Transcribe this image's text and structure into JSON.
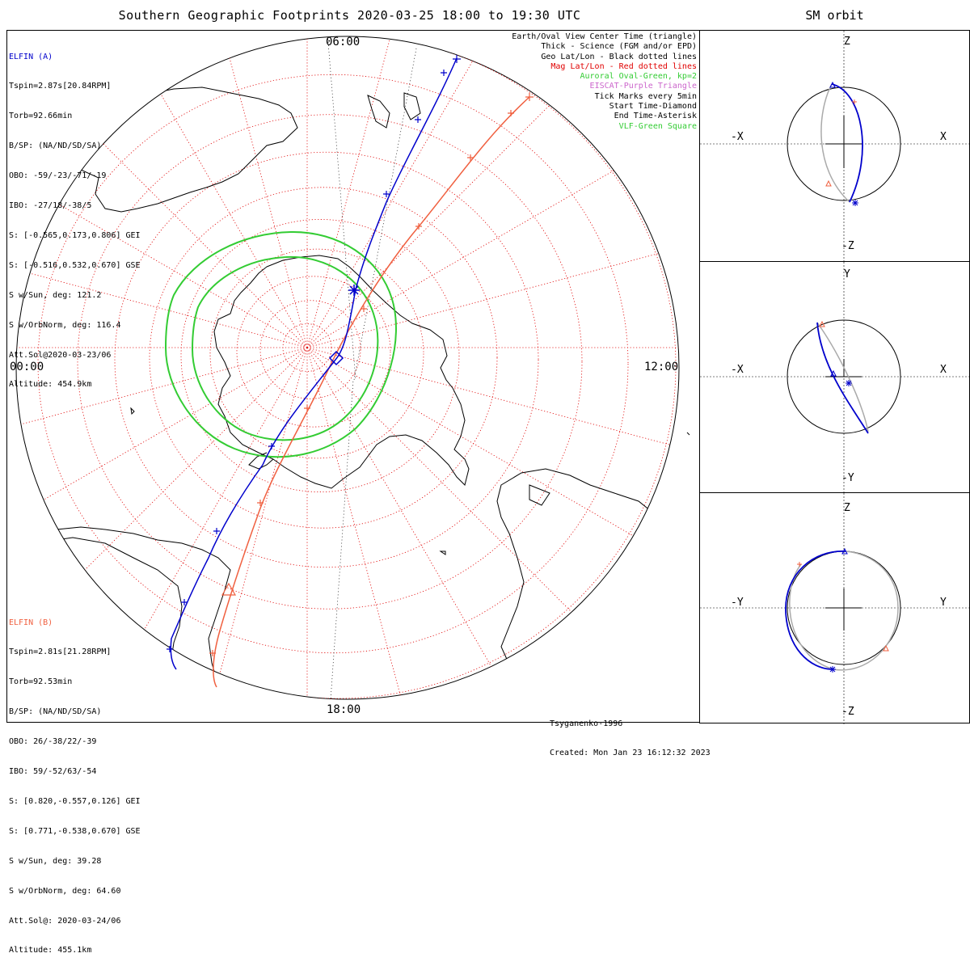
{
  "title": "Southern Geographic Footprints 2020-03-25 18:00 to 19:30 UTC",
  "orbit_title": "SM orbit",
  "local_times": {
    "top": "06:00",
    "left": "00:00",
    "right": "12:00",
    "bottom": "18:00"
  },
  "elfin_a": {
    "name": "ELFIN (A)",
    "color": "#0000cc",
    "lines": [
      "Tspin=2.87s[20.84RPM]",
      "Torb=92.66min",
      "B/SP: (NA/ND/SD/SA)",
      "OBO: -59/-23/-71/-19",
      "IBO: -27/18/-38/5",
      "S: [-0.565,0.173,0.806] GEI",
      "S: [-0.516,0.532,0.670] GSE",
      "S w/Sun, deg: 121.2",
      "S w/OrbNorm, deg: 116.4",
      "Att.Sol@2020-03-23/06",
      "Altitude: 454.9km"
    ]
  },
  "elfin_b": {
    "name": "ELFIN (B)",
    "color": "#f06040",
    "lines": [
      "Tspin=2.81s[21.28RPM]",
      "Torb=92.53min",
      "B/SP: (NA/ND/SD/SA)",
      "OBO: 26/-38/22/-39",
      "IBO: 59/-52/63/-54",
      "S: [0.820,-0.557,0.126] GEI",
      "S: [0.771,-0.538,0.670] GSE",
      "S w/Sun, deg: 39.28",
      "S w/OrbNorm, deg: 64.60",
      "Att.Sol@: 2020-03-24/06",
      "Altitude: 455.1km"
    ]
  },
  "legend": [
    {
      "text": "Earth/Oval View Center Time (triangle)",
      "color": "#000000"
    },
    {
      "text": "Thick - Science (FGM and/or EPD)",
      "color": "#000000"
    },
    {
      "text": "Geo Lat/Lon - Black dotted lines",
      "color": "#000000"
    },
    {
      "text": "Mag Lat/Lon - Red dotted lines",
      "color": "#e00000"
    },
    {
      "text": "Auroral Oval-Green, kp=2",
      "color": "#33cc33"
    },
    {
      "text": "EISCAT-Purple Triangle",
      "color": "#cc66cc"
    },
    {
      "text": "Tick Marks every 5min",
      "color": "#000000"
    },
    {
      "text": "Start Time-Diamond",
      "color": "#000000"
    },
    {
      "text": "End Time-Asterisk",
      "color": "#000000"
    },
    {
      "text": "VLF-Green Square",
      "color": "#33cc33"
    }
  ],
  "credit": {
    "model": "Tsyganenko-1996",
    "created": "Created: Mon Jan 23 16:12:32 2023"
  },
  "orbit_panels": [
    {
      "top": "Z",
      "bottom": "-Z",
      "left": "-X",
      "right": "X"
    },
    {
      "top": "Y",
      "bottom": "-Y",
      "left": "-X",
      "right": "X"
    },
    {
      "top": "Z",
      "bottom": "-Z",
      "left": "-Y",
      "right": "Y"
    }
  ],
  "colors": {
    "elfin_a": "#0000cc",
    "elfin_b": "#f06040",
    "oval": "#33cc33",
    "mag_grid": "#e00000",
    "geo_grid": "#000000"
  }
}
